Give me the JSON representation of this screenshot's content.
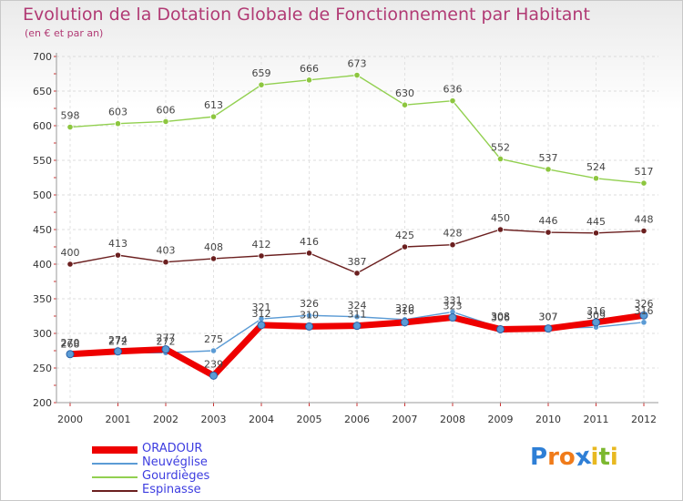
{
  "chart_data": {
    "type": "line",
    "title": "Evolution de la Dotation Globale de Fonctionnement par Habitant",
    "subtitle": "(en € et par an)",
    "categories": [
      "2000",
      "2001",
      "2002",
      "2003",
      "2004",
      "2005",
      "2006",
      "2007",
      "2008",
      "2009",
      "2010",
      "2011",
      "2012"
    ],
    "ylim": [
      200,
      700
    ],
    "yticks": [
      200,
      250,
      300,
      350,
      400,
      450,
      500,
      550,
      600,
      650,
      700
    ],
    "grid": true,
    "series": [
      {
        "name": "ORADOUR",
        "color": "#ee0000",
        "values": [
          270,
          274,
          277,
          239,
          312,
          310,
          311,
          316,
          323,
          306,
          307,
          316,
          326
        ]
      },
      {
        "name": "Neuvéglise",
        "color": "#5b9bd5",
        "values": [
          268,
          272,
          272,
          275,
          321,
          326,
          324,
          320,
          331,
          308,
          307,
          309,
          316
        ]
      },
      {
        "name": "Gourdièges",
        "color": "#92d050",
        "values": [
          598,
          603,
          606,
          613,
          659,
          666,
          673,
          630,
          636,
          552,
          537,
          524,
          517
        ]
      },
      {
        "name": "Espinasse",
        "color": "#6b1f1f",
        "values": [
          400,
          413,
          403,
          408,
          412,
          416,
          387,
          425,
          428,
          450,
          446,
          445,
          448
        ]
      }
    ]
  },
  "brand": {
    "letters": [
      "P",
      "r",
      "o",
      "x",
      "i",
      "t",
      "i"
    ],
    "colors": [
      "#2e7fd6",
      "#f07b1a",
      "#f07b1a",
      "#2e7fd6",
      "#e8b820",
      "#7cb82f",
      "#e8b820"
    ]
  }
}
